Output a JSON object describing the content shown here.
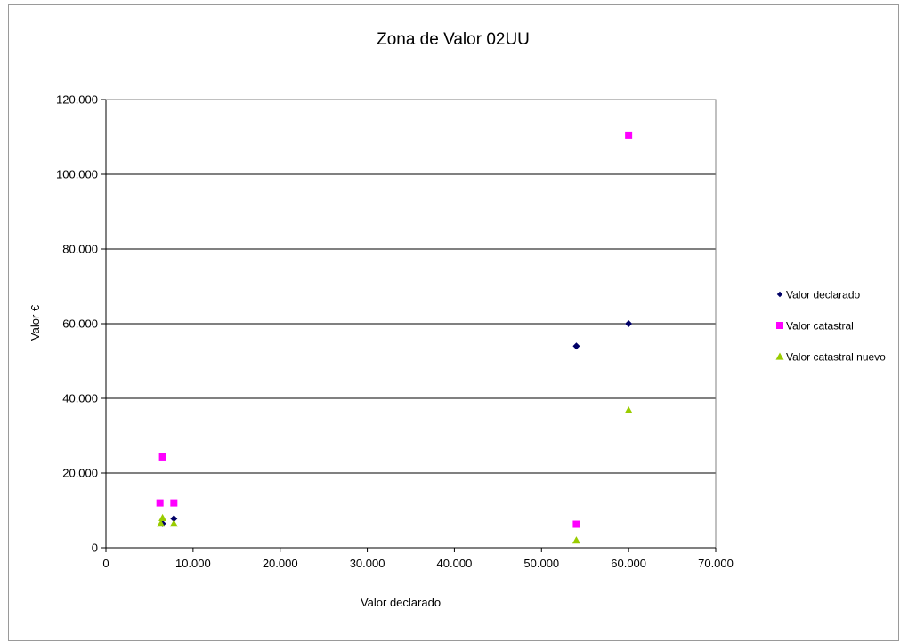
{
  "chart_data": {
    "type": "scatter",
    "title": "Zona de Valor 02UU",
    "xlabel": "Valor declarado",
    "ylabel": "Valor €",
    "xlim": [
      0,
      70000
    ],
    "ylim": [
      0,
      120000
    ],
    "x_ticks": [
      "0",
      "10.000",
      "20.000",
      "30.000",
      "40.000",
      "50.000",
      "60.000",
      "70.000"
    ],
    "y_ticks": [
      "0",
      "20.000",
      "40.000",
      "60.000",
      "80.000",
      "100.000",
      "120.000"
    ],
    "grid": "horizontal",
    "legend_position": "right",
    "series": [
      {
        "name": "Valor declarado",
        "marker": "diamond",
        "color": "#000066",
        "points": [
          {
            "x": 6500,
            "y": 6500
          },
          {
            "x": 7800,
            "y": 7800
          },
          {
            "x": 54000,
            "y": 54000
          },
          {
            "x": 60000,
            "y": 60000
          }
        ]
      },
      {
        "name": "Valor catastral",
        "marker": "square",
        "color": "#ff00ff",
        "points": [
          {
            "x": 6200,
            "y": 12000
          },
          {
            "x": 6500,
            "y": 24300
          },
          {
            "x": 7800,
            "y": 12000
          },
          {
            "x": 54000,
            "y": 6300
          },
          {
            "x": 60000,
            "y": 110500
          }
        ]
      },
      {
        "name": "Valor catastral nuevo",
        "marker": "triangle",
        "color": "#99cc00",
        "points": [
          {
            "x": 6300,
            "y": 6500
          },
          {
            "x": 6500,
            "y": 8000
          },
          {
            "x": 7800,
            "y": 6500
          },
          {
            "x": 54000,
            "y": 2000
          },
          {
            "x": 60000,
            "y": 36800
          }
        ]
      }
    ]
  }
}
